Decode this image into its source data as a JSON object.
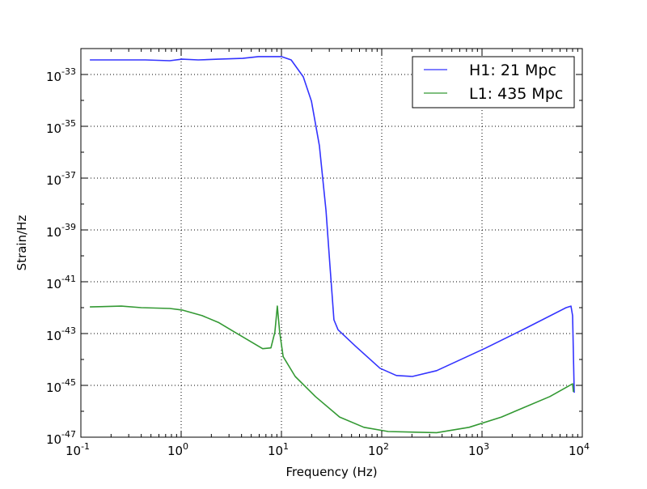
{
  "chart_data": {
    "type": "line",
    "title": "",
    "xlabel": "Frequency (Hz)",
    "ylabel": "Strain/Hz",
    "xscale": "log",
    "yscale": "log",
    "xlim": [
      0.1,
      10000
    ],
    "ylim": [
      1e-47,
      1e-32
    ],
    "grid": true,
    "legend_position": "top-right",
    "x_ticks": [
      {
        "base": "10",
        "exp": "-1",
        "value": 0.1
      },
      {
        "base": "10",
        "exp": "0",
        "value": 1
      },
      {
        "base": "10",
        "exp": "1",
        "value": 10
      },
      {
        "base": "10",
        "exp": "2",
        "value": 100
      },
      {
        "base": "10",
        "exp": "3",
        "value": 1000
      },
      {
        "base": "10",
        "exp": "4",
        "value": 10000
      }
    ],
    "y_ticks": [
      {
        "base": "10",
        "exp": "-47",
        "value": 1e-47
      },
      {
        "base": "10",
        "exp": "-45",
        "value": 1e-45
      },
      {
        "base": "10",
        "exp": "-43",
        "value": 1e-43
      },
      {
        "base": "10",
        "exp": "-41",
        "value": 1e-41
      },
      {
        "base": "10",
        "exp": "-39",
        "value": 1e-39
      },
      {
        "base": "10",
        "exp": "-37",
        "value": 1e-37
      },
      {
        "base": "10",
        "exp": "-35",
        "value": 1e-35
      },
      {
        "base": "10",
        "exp": "-33",
        "value": 1e-33
      }
    ],
    "series": [
      {
        "name": "H1: 21 Mpc",
        "color": "#3333ff",
        "x": [
          0.123,
          0.44,
          0.77,
          1.02,
          1.48,
          2.35,
          4.1,
          5.9,
          10,
          12.5,
          16.5,
          19.9,
          23.9,
          27.8,
          30.5,
          33.4,
          36.7,
          55,
          96,
          140,
          202,
          353,
          1076,
          2723,
          6900,
          7710,
          8000,
          8300
        ],
        "y": [
          3.65e-33,
          3.65e-33,
          3.4e-33,
          3.9e-33,
          3.65e-33,
          3.9e-33,
          4.2e-33,
          4.9e-33,
          4.9e-33,
          3.65e-33,
          8.1e-34,
          9.3e-35,
          1.8e-36,
          5.6e-39,
          3.7e-41,
          3.4e-43,
          1.4e-43,
          3.2e-44,
          4.6e-45,
          2.4e-45,
          2.2e-45,
          3.7e-45,
          2.7e-44,
          1.6e-43,
          1e-42,
          1.15e-42,
          4.9e-43,
          5.2e-46
        ]
      },
      {
        "name": "L1: 435 Mpc",
        "color": "#339933",
        "x": [
          0.123,
          0.253,
          0.4,
          0.77,
          1.02,
          1.62,
          2.35,
          3.4,
          4.94,
          6.5,
          7.86,
          8.6,
          9.1,
          9.6,
          10.4,
          13.7,
          21.8,
          38,
          66.5,
          116,
          353,
          743,
          1563,
          4750,
          8000,
          8150
        ],
        "y": [
          1.07e-42,
          1.15e-42,
          1e-42,
          9.3e-43,
          8.1e-43,
          4.9e-43,
          2.7e-43,
          1.15e-43,
          4.9e-44,
          2.6e-44,
          2.8e-44,
          1.15e-43,
          1.15e-42,
          1.15e-43,
          1.3e-44,
          2.2e-45,
          3.7e-46,
          6e-47,
          2.4e-47,
          1.65e-47,
          1.5e-47,
          2.4e-47,
          6e-47,
          3.7e-46,
          1.15e-45,
          5.6e-46
        ]
      }
    ]
  }
}
